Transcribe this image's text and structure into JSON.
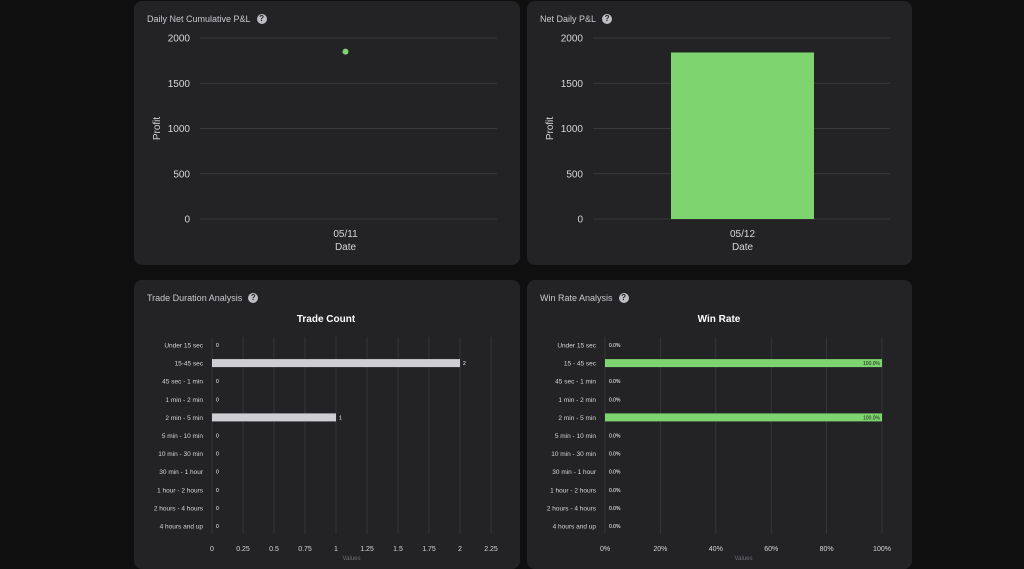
{
  "panels": {
    "cumulative": {
      "title": "Daily Net Cumulative P&L"
    },
    "net_daily": {
      "title": "Net Daily P&L"
    },
    "duration": {
      "title": "Trade Duration Analysis"
    },
    "win_rate": {
      "title": "Win Rate Analysis"
    }
  },
  "colors": {
    "accent_green": "#7ed46f",
    "bar_gray": "#cfcfd3",
    "panel_bg": "#232326",
    "page_bg": "#0f0f10",
    "grid": "#3a3a3e"
  },
  "chart_data": [
    {
      "type": "scatter",
      "x": [
        "05/11"
      ],
      "y": [
        1850
      ],
      "xlabel": "Date",
      "ylabel": "Profit",
      "ylim": [
        0,
        2000
      ],
      "yticks": [
        0,
        500,
        1000,
        1500,
        2000
      ],
      "grid": true
    },
    {
      "type": "bar",
      "categories": [
        "05/12"
      ],
      "values": [
        1840
      ],
      "xlabel": "Date",
      "ylabel": "Profit",
      "ylim": [
        0,
        2000
      ],
      "yticks": [
        0,
        500,
        1000,
        1500,
        2000
      ],
      "grid": true
    },
    {
      "type": "bar",
      "orientation": "horizontal",
      "title": "Trade Count",
      "categories": [
        "Under 15 sec",
        "15-45 sec",
        "45 sec - 1 min",
        "1 min - 2 min",
        "2 min - 5 min",
        "5 min - 10 min",
        "10 min - 30 min",
        "30 min - 1 hour",
        "1 hour - 2 hours",
        "2 hours - 4 hours",
        "4 hours and up"
      ],
      "values": [
        0,
        2,
        0,
        0,
        1,
        0,
        0,
        0,
        0,
        0,
        0
      ],
      "value_labels": [
        "0",
        "2",
        "0",
        "0",
        "1",
        "0",
        "0",
        "0",
        "0",
        "0",
        "0"
      ],
      "xlabel": "Values",
      "xlim": [
        0,
        2.25
      ],
      "xticks": [
        "0",
        "0.25",
        "0.5",
        "0.75",
        "1",
        "1.25",
        "1.5",
        "1.75",
        "2",
        "2.25"
      ],
      "grid": true
    },
    {
      "type": "bar",
      "orientation": "horizontal",
      "title": "Win Rate",
      "categories": [
        "Under 15 sec",
        "15 - 45 sec",
        "45 sec - 1 min",
        "1 min - 2 min",
        "2 min - 5 min",
        "5 min - 10 min",
        "10 min - 30 min",
        "30 min - 1 hour",
        "1 hour - 2 hours",
        "2 hours - 4 hours",
        "4 hours and up"
      ],
      "values": [
        0,
        100,
        0,
        0,
        100,
        0,
        0,
        0,
        0,
        0,
        0
      ],
      "value_labels": [
        "0.0%",
        "100.0%",
        "0.0%",
        "0.0%",
        "100.0%",
        "0.0%",
        "0.0%",
        "0.0%",
        "0.0%",
        "0.0%",
        "0.0%"
      ],
      "xlabel": "Values",
      "xlim": [
        0,
        100
      ],
      "xticks": [
        "0%",
        "20%",
        "40%",
        "60%",
        "80%",
        "100%"
      ],
      "grid": true
    }
  ]
}
